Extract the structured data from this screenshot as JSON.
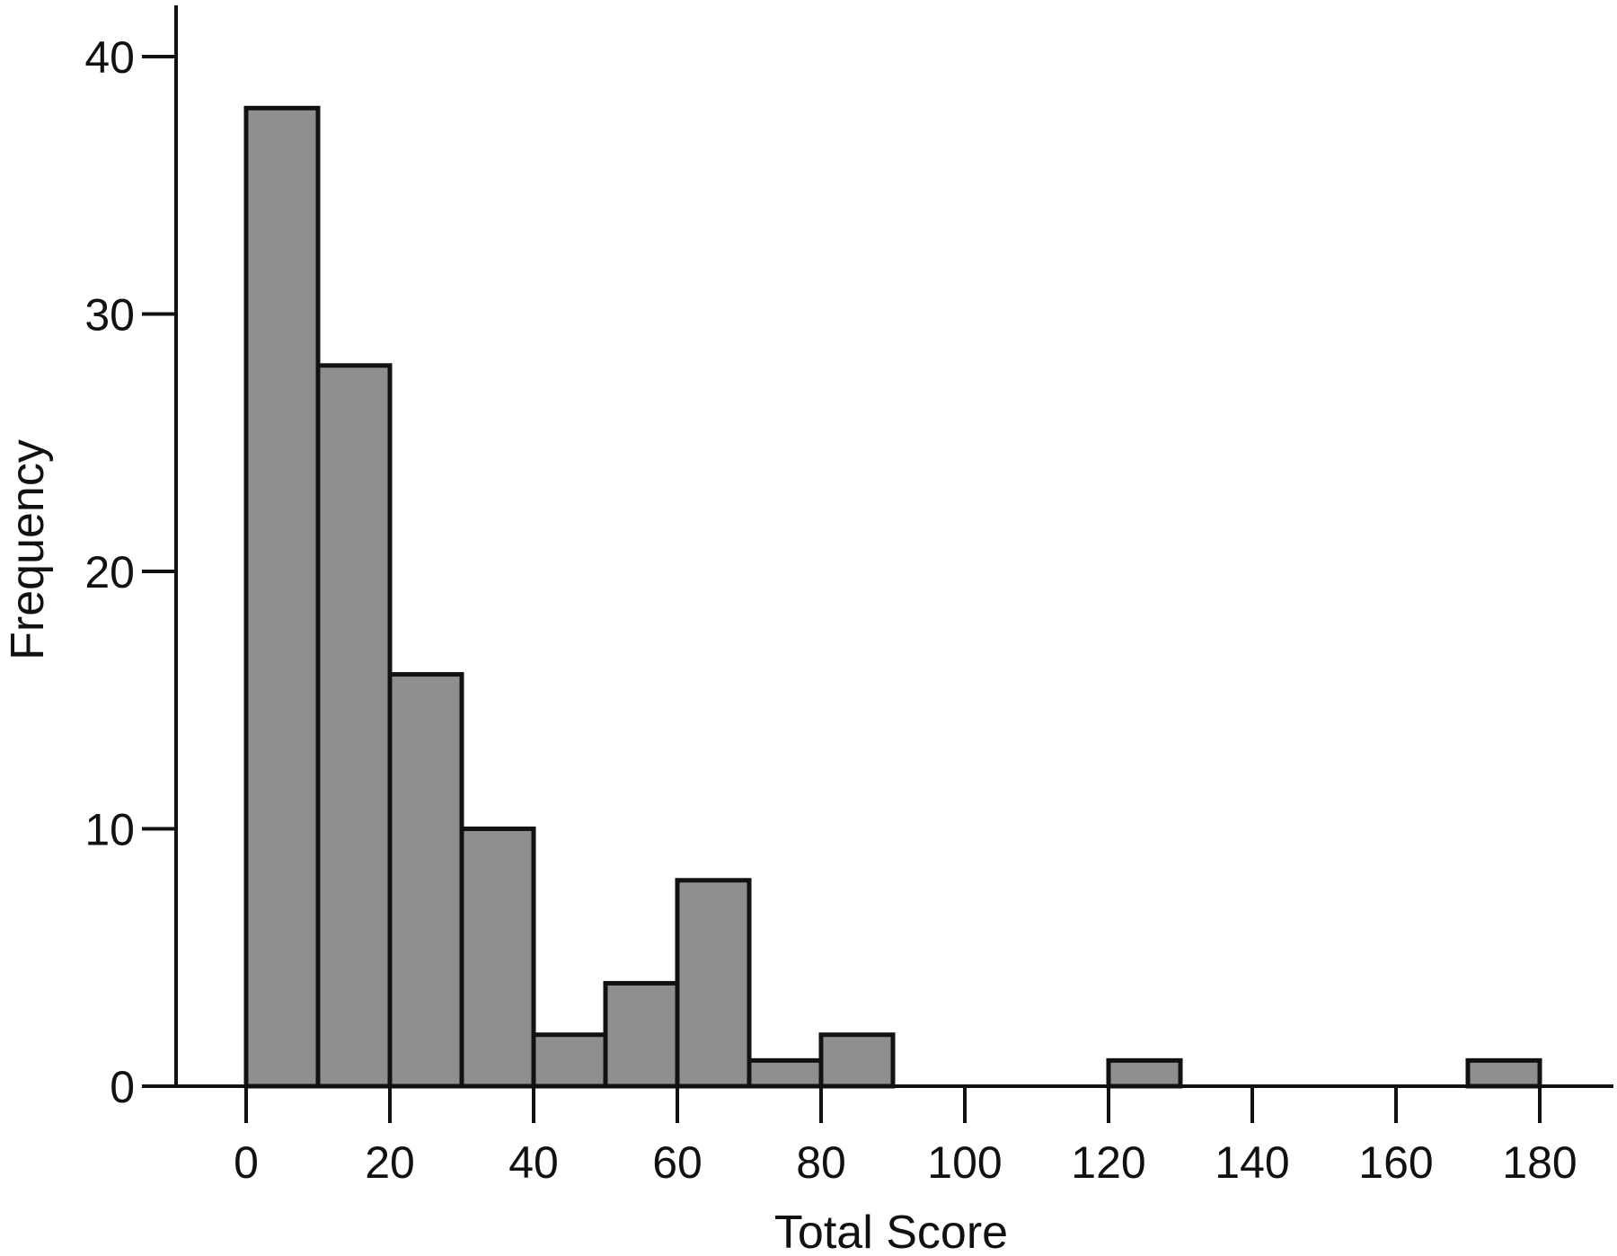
{
  "chart_data": {
    "type": "bar",
    "subtype": "histogram",
    "title": "",
    "xlabel": "Total Score",
    "ylabel": "Frequency",
    "xlim": [
      0,
      190
    ],
    "ylim": [
      0,
      40
    ],
    "bin_width": 10,
    "bins": [
      {
        "start": 0,
        "end": 10,
        "value": 38
      },
      {
        "start": 10,
        "end": 20,
        "value": 28
      },
      {
        "start": 20,
        "end": 30,
        "value": 16
      },
      {
        "start": 30,
        "end": 40,
        "value": 10
      },
      {
        "start": 40,
        "end": 50,
        "value": 2
      },
      {
        "start": 50,
        "end": 60,
        "value": 4
      },
      {
        "start": 60,
        "end": 70,
        "value": 8
      },
      {
        "start": 70,
        "end": 80,
        "value": 1
      },
      {
        "start": 80,
        "end": 90,
        "value": 2
      },
      {
        "start": 90,
        "end": 100,
        "value": 0
      },
      {
        "start": 100,
        "end": 110,
        "value": 0
      },
      {
        "start": 110,
        "end": 120,
        "value": 0
      },
      {
        "start": 120,
        "end": 130,
        "value": 1
      },
      {
        "start": 130,
        "end": 140,
        "value": 0
      },
      {
        "start": 140,
        "end": 150,
        "value": 0
      },
      {
        "start": 150,
        "end": 160,
        "value": 0
      },
      {
        "start": 160,
        "end": 170,
        "value": 0
      },
      {
        "start": 170,
        "end": 180,
        "value": 1
      }
    ],
    "xticks": [
      0,
      20,
      40,
      60,
      80,
      100,
      120,
      140,
      160,
      180
    ],
    "yticks": [
      0,
      10,
      20,
      30,
      40
    ],
    "grid": false,
    "legend": "none",
    "bar_color": "#8f8f8f",
    "edge_color": "#111111"
  }
}
